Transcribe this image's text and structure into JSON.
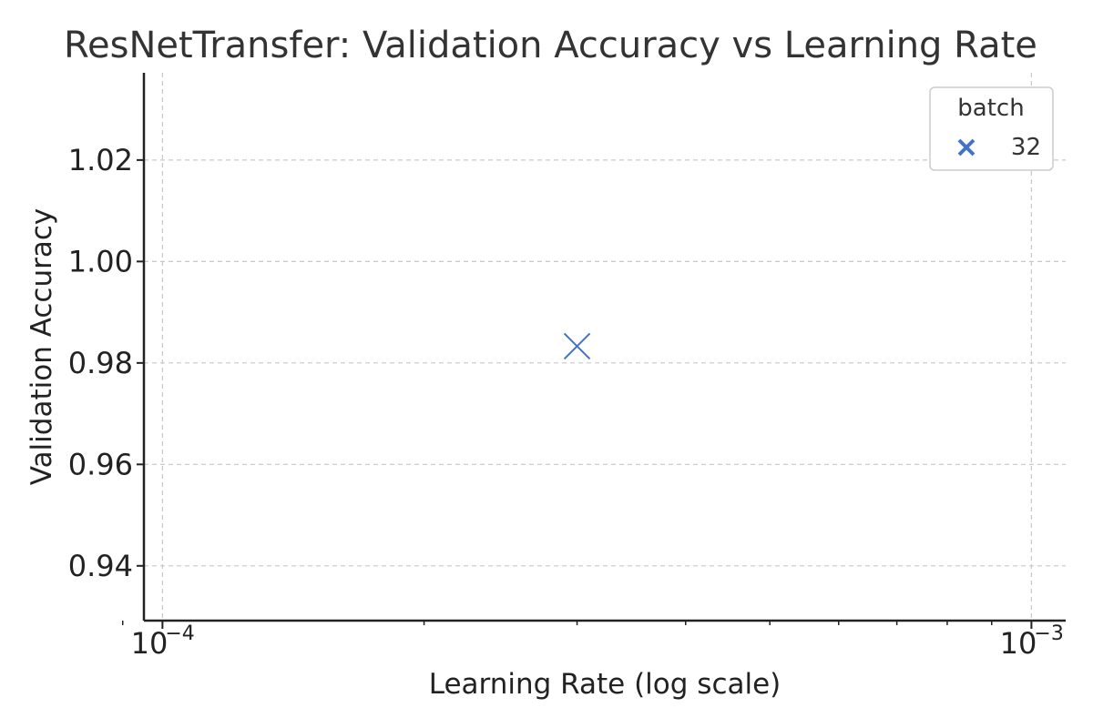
{
  "chart_data": {
    "type": "scatter",
    "title": "ResNetTransfer: Validation Accuracy vs Learning Rate",
    "xlabel": "Learning Rate (log scale)",
    "ylabel": "Validation Accuracy",
    "x_scale": "log",
    "xlim": [
      9.52e-05,
      0.001095
    ],
    "ylim": [
      0.9292,
      1.0372
    ],
    "x_ticks": [
      {
        "value": 0.0001,
        "base": "10",
        "exp": "−4"
      },
      {
        "value": 0.001,
        "base": "10",
        "exp": "−3"
      }
    ],
    "y_ticks": [
      {
        "value": 0.94,
        "label": "0.94"
      },
      {
        "value": 0.96,
        "label": "0.96"
      },
      {
        "value": 0.98,
        "label": "0.98"
      },
      {
        "value": 1.0,
        "label": "1.00"
      },
      {
        "value": 1.02,
        "label": "1.02"
      }
    ],
    "grid": true,
    "legend": {
      "title": "batch",
      "placement": "top-right"
    },
    "series": [
      {
        "name": "32",
        "marker": "x",
        "color": "#4472C4",
        "points": [
          {
            "x": 0.0003,
            "y": 0.9833
          }
        ]
      }
    ]
  }
}
